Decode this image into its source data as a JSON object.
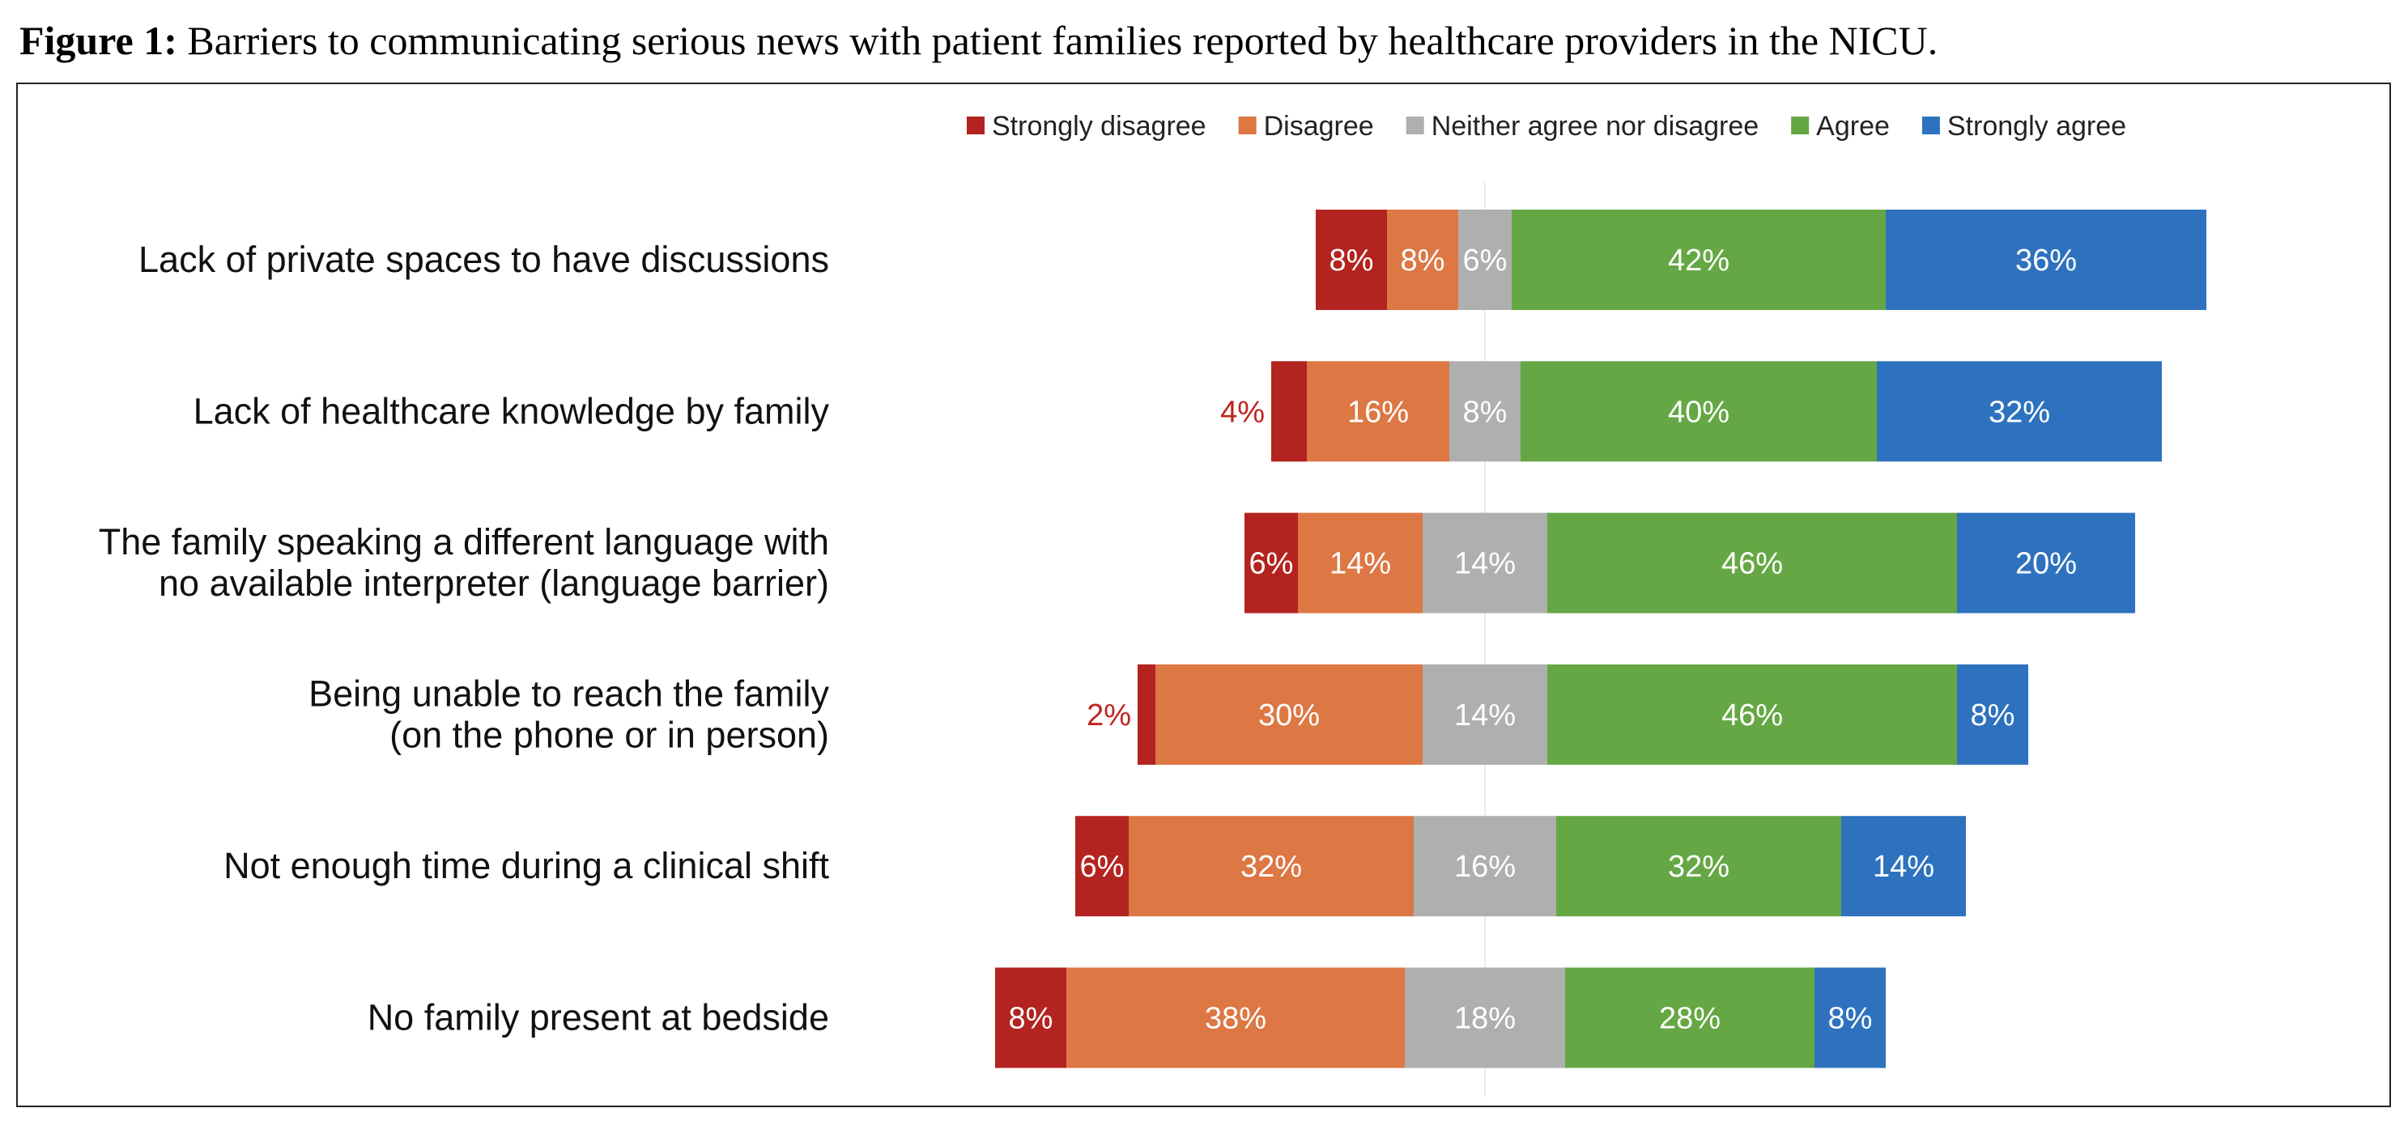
{
  "figure": {
    "label": "Figure 1:",
    "title": "Barriers to communicating serious news with patient families reported by healthcare providers in the NICU."
  },
  "chart_data": {
    "type": "bar",
    "orientation": "horizontal",
    "stacked": true,
    "diverging": true,
    "legend_position": "top",
    "grid": false,
    "value_unit": "%",
    "categories": [
      "Lack of private spaces to have discussions",
      "Lack of healthcare knowledge by family",
      "The family speaking a different language with no available interpreter (language barrier)",
      "Being unable to reach the family (on the phone or in person)",
      "Not enough time during a clinical shift",
      "No family present at bedside"
    ],
    "category_lines": [
      [
        "Lack of private spaces to have discussions"
      ],
      [
        "Lack of healthcare knowledge by family"
      ],
      [
        "The family speaking a different language with",
        "no available interpreter (language barrier)"
      ],
      [
        "Being unable to reach the family",
        "(on the phone or in person)"
      ],
      [
        "Not enough time during a clinical shift"
      ],
      [
        "No family present at bedside"
      ]
    ],
    "series": [
      {
        "name": "Strongly disagree",
        "color": "#B3231F",
        "values": [
          8,
          4,
          6,
          2,
          6,
          8
        ]
      },
      {
        "name": "Disagree",
        "color": "#DD7744",
        "values": [
          8,
          16,
          14,
          30,
          32,
          38
        ]
      },
      {
        "name": "Neither agree nor disagree",
        "color": "#AFAFAF",
        "values": [
          6,
          8,
          14,
          14,
          16,
          18
        ]
      },
      {
        "name": "Agree",
        "color": "#65A744",
        "values": [
          42,
          40,
          46,
          46,
          32,
          28
        ]
      },
      {
        "name": "Strongly agree",
        "color": "#2E72BF",
        "values": [
          36,
          32,
          20,
          8,
          14,
          8
        ]
      }
    ],
    "data_labels": [
      [
        "8%",
        "8%",
        "6%",
        "42%",
        "36%"
      ],
      [
        "4%",
        "16%",
        "8%",
        "40%",
        "32%"
      ],
      [
        "6%",
        "14%",
        "14%",
        "46%",
        "20%"
      ],
      [
        "2%",
        "30%",
        "14%",
        "46%",
        "8%"
      ],
      [
        "6%",
        "32%",
        "16%",
        "32%",
        "14%"
      ],
      [
        "8%",
        "38%",
        "18%",
        "28%",
        "8%"
      ]
    ],
    "outside_label_color": "#C0241F",
    "inside_label_color": "#FFFFFF"
  }
}
